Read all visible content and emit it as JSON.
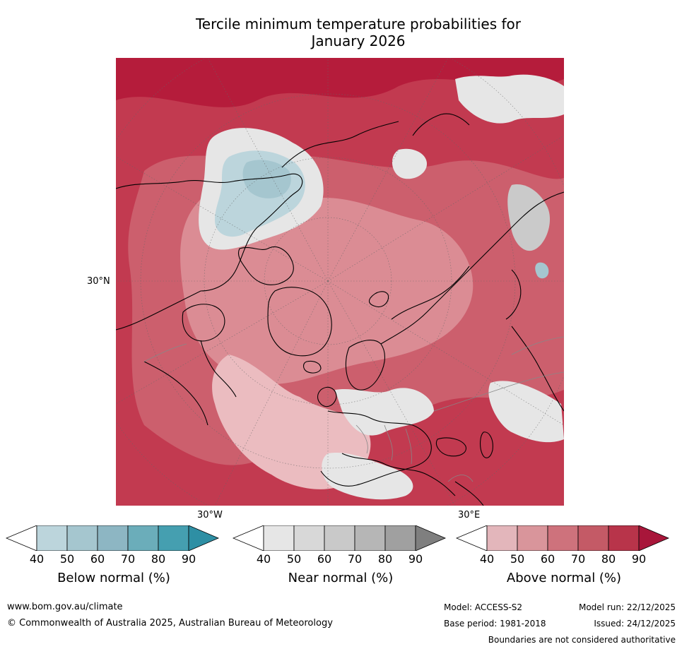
{
  "title": {
    "line1": "Tercile minimum temperature probabilities for",
    "line2": "January 2026"
  },
  "map": {
    "lat_label": "30°N",
    "lon_label_left": "30°W",
    "lon_label_right": "30°E",
    "projection": "north polar stereographic",
    "colors": {
      "deep_red": "#b51c3b",
      "red": "#c23a50",
      "mid_red": "#cc5f6d",
      "light_red": "#db8c94",
      "pale_red": "#ebbcc0",
      "grey_light": "#e6e6e6",
      "grey": "#cacaca",
      "blue_light": "#bcd5dc",
      "blue": "#a5c6cf",
      "coast": "#000000",
      "border": "#888888"
    }
  },
  "colorbars": [
    {
      "label": "Below normal (%)",
      "ticks": [
        "40",
        "50",
        "60",
        "70",
        "80",
        "90"
      ],
      "colors": [
        "#ffffff",
        "#bcd5dc",
        "#a5c6cf",
        "#8db6c3",
        "#6badba",
        "#459fb0",
        "#2e8fa4"
      ]
    },
    {
      "label": "Near normal (%)",
      "ticks": [
        "40",
        "50",
        "60",
        "70",
        "80",
        "90"
      ],
      "colors": [
        "#ffffff",
        "#e6e6e6",
        "#d8d8d8",
        "#c9c9c9",
        "#b6b6b6",
        "#a0a0a0",
        "#7f7f7f"
      ]
    },
    {
      "label": "Above normal (%)",
      "ticks": [
        "40",
        "50",
        "60",
        "70",
        "80",
        "90"
      ],
      "colors": [
        "#ffffff",
        "#e3b6bb",
        "#d9959b",
        "#ce727c",
        "#c45a66",
        "#b8344a",
        "#a8163a"
      ]
    }
  ],
  "footer": {
    "website": "www.bom.gov.au/climate",
    "copyright": "© Commonwealth of Australia 2025, Australian Bureau of Meteorology",
    "model": "Model: ACCESS-S2",
    "base_period": "Base period: 1981-2018",
    "model_run": "Model run: 22/12/2025",
    "issued": "Issued: 24/12/2025",
    "disclaimer": "Boundaries are not considered authoritative"
  }
}
